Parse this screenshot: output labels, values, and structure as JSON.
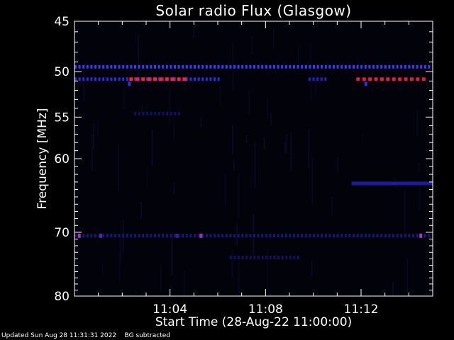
{
  "title": "Solar radio Flux (Glasgow)",
  "footer": {
    "updated": "Updated Sun Aug 28 11:31:31 2022",
    "note": "BG subtracted"
  },
  "chart_data": {
    "type": "heatmap",
    "title": "Solar radio Flux (Glasgow)",
    "xlabel": "Start Time (28-Aug-22 11:00:00)",
    "ylabel": "Frequency [MHz]",
    "x_range_min": [
      0,
      15
    ],
    "y_range_mhz": [
      45,
      80
    ],
    "y_scale": "log",
    "x_ticks": [
      {
        "min": 4,
        "label": "11:04"
      },
      {
        "min": 8,
        "label": "11:08"
      },
      {
        "min": 12,
        "label": "11:12"
      }
    ],
    "y_ticks": [
      {
        "mhz": 45,
        "label": "45"
      },
      {
        "mhz": 50,
        "label": "50"
      },
      {
        "mhz": 55,
        "label": "55"
      },
      {
        "mhz": 60,
        "label": "60"
      },
      {
        "mhz": 70,
        "label": "70"
      },
      {
        "mhz": 80,
        "label": "80"
      }
    ],
    "colormap": {
      "low": "#000010",
      "mid": "#2020d0",
      "high": "#ff2020"
    },
    "features": [
      {
        "name": "interference band",
        "freq_mhz": 49.5,
        "t_start": 0,
        "t_end": 15,
        "level": "mid",
        "color": "#3a3aff",
        "dashed": true
      },
      {
        "name": "interference band",
        "freq_mhz": 50.8,
        "t_start": 0,
        "t_end": 6.1,
        "level": "mixed",
        "color": "#2b2bdd",
        "dashed": true
      },
      {
        "name": "bright band",
        "freq_mhz": 50.8,
        "t_start": 2.3,
        "t_end": 4.7,
        "level": "high",
        "color": "#ff2222",
        "dashed": true
      },
      {
        "name": "bright band",
        "freq_mhz": 50.8,
        "t_start": 11.8,
        "t_end": 14.6,
        "level": "high",
        "color": "#e01e3c",
        "dashed": true
      },
      {
        "name": "interference band",
        "freq_mhz": 50.8,
        "t_start": 9.8,
        "t_end": 10.5,
        "level": "mid",
        "color": "#2222cc",
        "dashed": true
      },
      {
        "name": "faint band",
        "freq_mhz": 54.6,
        "t_start": 2.5,
        "t_end": 4.5,
        "level": "low",
        "color": "#101060",
        "dashed": true
      },
      {
        "name": "interference band",
        "freq_mhz": 63.2,
        "t_start": 11.6,
        "t_end": 15,
        "level": "mid",
        "color": "#1c1c9c",
        "dashed": false
      },
      {
        "name": "faint band",
        "freq_mhz": 70.5,
        "t_start": 0,
        "t_end": 15,
        "level": "low",
        "color": "#181878",
        "dashed": true
      },
      {
        "name": "faint band",
        "freq_mhz": 73.8,
        "t_start": 6.5,
        "t_end": 9.5,
        "level": "low",
        "color": "#121260",
        "dashed": true
      }
    ],
    "spots": [
      {
        "t": 0.2,
        "freq_mhz": 70.5,
        "color": "#b030c0"
      },
      {
        "t": 1.1,
        "freq_mhz": 70.5,
        "color": "#6020a0"
      },
      {
        "t": 5.3,
        "freq_mhz": 70.5,
        "color": "#a030b0"
      },
      {
        "t": 14.5,
        "freq_mhz": 70.5,
        "color": "#b030c0"
      },
      {
        "t": 4.3,
        "freq_mhz": 70.5,
        "color": "#3a1a90"
      },
      {
        "t": 2.3,
        "freq_mhz": 51.3,
        "color": "#3030e0"
      },
      {
        "t": 12.2,
        "freq_mhz": 51.3,
        "color": "#3030e0"
      }
    ],
    "grid": false,
    "legend": "none"
  }
}
